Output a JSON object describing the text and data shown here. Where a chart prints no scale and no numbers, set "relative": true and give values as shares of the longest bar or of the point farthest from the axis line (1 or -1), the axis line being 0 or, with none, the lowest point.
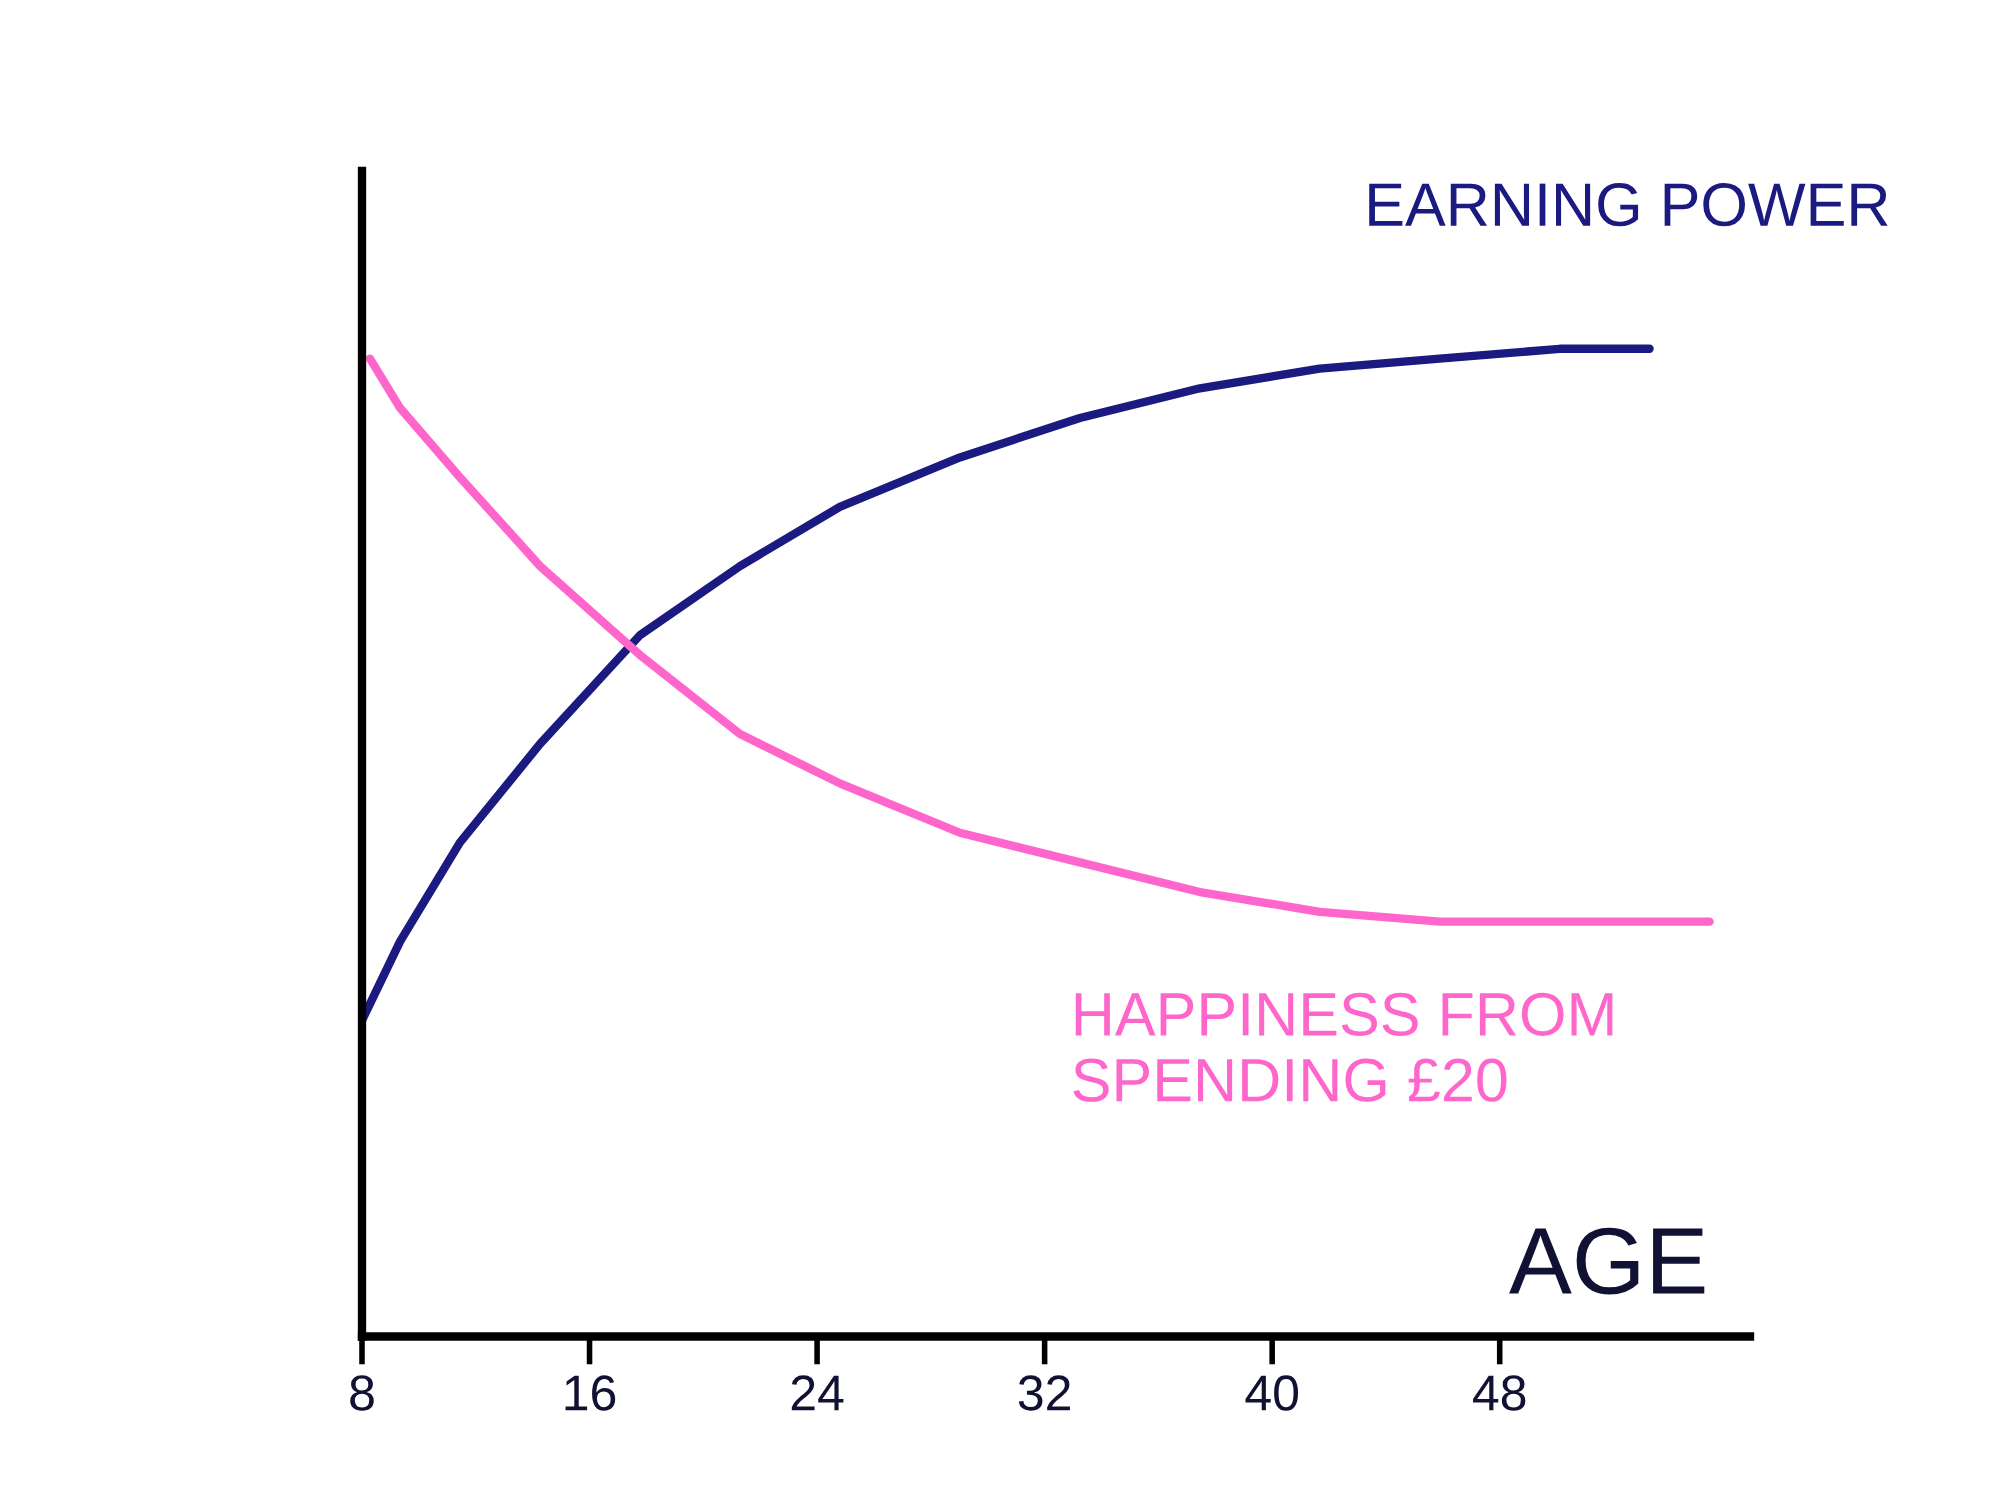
{
  "chart_data": {
    "type": "line",
    "relative": true,
    "xlabel": "AGE",
    "xlim": [
      8,
      56.8
    ],
    "xticks": [
      8,
      16,
      24,
      32,
      40,
      48
    ],
    "grid": false,
    "legend": false,
    "marker": "none",
    "line_style": "solid",
    "series": [
      {
        "name": "EARNING POWER",
        "color": "#1a1a80",
        "x": [
          8,
          9.34,
          11.44,
          14.26,
          17.77,
          21.29,
          24.8,
          29.02,
          33.24,
          37.46,
          41.67,
          45.89,
          50.11,
          53.27
        ],
        "values": [
          0.32,
          0.4,
          0.5,
          0.6,
          0.71,
          0.78,
          0.84,
          0.89,
          0.93,
          0.96,
          0.98,
          0.99,
          1.0,
          1.0
        ]
      },
      {
        "name": "HAPPINESS FROM\nSPENDING £20",
        "color": "#ff66cc",
        "x": [
          8.28,
          9.34,
          11.44,
          14.26,
          17.77,
          21.29,
          24.8,
          29.02,
          33.24,
          37.46,
          41.67,
          45.89,
          50.11,
          55.38
        ],
        "values": [
          0.99,
          0.94,
          0.87,
          0.78,
          0.69,
          0.61,
          0.56,
          0.51,
          0.48,
          0.45,
          0.43,
          0.42,
          0.42,
          0.42
        ]
      }
    ]
  }
}
